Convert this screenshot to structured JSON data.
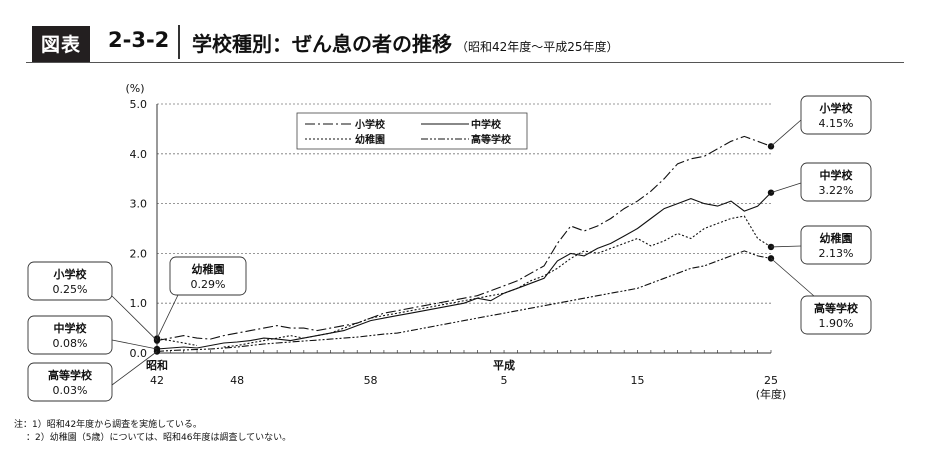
{
  "header": {
    "badge": "図表",
    "number": "2-3-2",
    "title": "学校種別：ぜん息の者の推移",
    "subtitle": "（昭和42年度～平成25年度）"
  },
  "notes": [
    "注：1）昭和42年度から調査を実施している。",
    "：2）幼稚園（5歳）については、昭和46年度は調査していない。"
  ],
  "chart_data": {
    "type": "line",
    "y_unit": "(%)",
    "x_unit": "(年度)",
    "ylim": [
      0,
      5
    ],
    "yticks": [
      "0.0",
      "1.0",
      "2.0",
      "3.0",
      "4.0",
      "5.0"
    ],
    "gridlines": "dotted horizontal",
    "x": [
      "昭和42",
      "昭和43",
      "昭和44",
      "昭和45",
      "昭和46",
      "昭和47",
      "昭和48",
      "昭和49",
      "昭和50",
      "昭和51",
      "昭和52",
      "昭和53",
      "昭和54",
      "昭和55",
      "昭和56",
      "昭和57",
      "昭和58",
      "昭和59",
      "昭和60",
      "昭和61",
      "昭和62",
      "昭和63",
      "平成元",
      "平成2",
      "平成3",
      "平成4",
      "平成5",
      "平成6",
      "平成7",
      "平成8",
      "平成9",
      "平成10",
      "平成11",
      "平成12",
      "平成13",
      "平成14",
      "平成15",
      "平成16",
      "平成17",
      "平成18",
      "平成19",
      "平成20",
      "平成21",
      "平成22",
      "平成23",
      "平成24",
      "平成25"
    ],
    "xtick_labels": [
      {
        "index": 0,
        "top": "昭和",
        "bottom": "42"
      },
      {
        "index": 6,
        "top": "",
        "bottom": "48"
      },
      {
        "index": 16,
        "top": "",
        "bottom": "58"
      },
      {
        "index": 26,
        "top": "平成",
        "bottom": "5"
      },
      {
        "index": 36,
        "top": "",
        "bottom": "15"
      },
      {
        "index": 46,
        "top": "",
        "bottom": "25"
      }
    ],
    "series": [
      {
        "name": "小学校",
        "dash": "10,3,2,3",
        "values": [
          0.25,
          0.3,
          0.35,
          0.3,
          0.28,
          0.35,
          0.4,
          0.45,
          0.5,
          0.55,
          0.5,
          0.5,
          0.45,
          0.5,
          0.55,
          0.6,
          0.7,
          0.8,
          0.85,
          0.9,
          0.95,
          1.0,
          1.05,
          1.1,
          1.15,
          1.25,
          1.35,
          1.45,
          1.6,
          1.75,
          2.2,
          2.55,
          2.45,
          2.55,
          2.7,
          2.9,
          3.05,
          3.25,
          3.5,
          3.8,
          3.9,
          3.95,
          4.1,
          4.25,
          4.35,
          4.25,
          4.15
        ]
      },
      {
        "name": "中学校",
        "dash": "",
        "values": [
          0.08,
          0.1,
          0.12,
          0.1,
          0.15,
          0.2,
          0.22,
          0.25,
          0.3,
          0.28,
          0.25,
          0.3,
          0.35,
          0.4,
          0.45,
          0.55,
          0.65,
          0.7,
          0.75,
          0.8,
          0.85,
          0.9,
          0.95,
          1.0,
          1.1,
          1.05,
          1.2,
          1.3,
          1.4,
          1.5,
          1.85,
          2.0,
          1.95,
          2.1,
          2.2,
          2.35,
          2.5,
          2.7,
          2.9,
          3.0,
          3.1,
          3.0,
          2.95,
          3.05,
          2.85,
          2.95,
          3.22
        ]
      },
      {
        "name": "幼稚園",
        "dash": "2,2",
        "values": [
          0.29,
          0.25,
          0.2,
          0.15,
          null,
          0.12,
          0.15,
          0.2,
          0.25,
          0.3,
          0.35,
          0.3,
          0.35,
          0.4,
          0.5,
          0.6,
          0.7,
          0.75,
          0.8,
          0.85,
          0.9,
          0.95,
          1.0,
          1.05,
          1.1,
          1.15,
          1.2,
          1.3,
          1.45,
          1.55,
          1.7,
          1.9,
          2.05,
          2.0,
          2.1,
          2.2,
          2.3,
          2.15,
          2.25,
          2.4,
          2.3,
          2.5,
          2.6,
          2.7,
          2.75,
          2.3,
          2.13
        ]
      },
      {
        "name": "高等学校",
        "dash": "7,2,2,2,2,2",
        "values": [
          0.03,
          0.05,
          0.06,
          0.07,
          0.08,
          0.1,
          0.12,
          0.15,
          0.18,
          0.2,
          0.22,
          0.24,
          0.26,
          0.28,
          0.3,
          0.32,
          0.35,
          0.38,
          0.4,
          0.45,
          0.5,
          0.55,
          0.6,
          0.65,
          0.7,
          0.75,
          0.8,
          0.85,
          0.9,
          0.95,
          1.0,
          1.05,
          1.1,
          1.15,
          1.2,
          1.25,
          1.3,
          1.4,
          1.5,
          1.6,
          1.7,
          1.75,
          1.85,
          1.95,
          2.05,
          1.95,
          1.9
        ]
      }
    ],
    "legend": [
      {
        "name": "小学校",
        "dash": "10,3,2,3"
      },
      {
        "name": "中学校",
        "dash": ""
      },
      {
        "name": "幼稚園",
        "dash": "2,2"
      },
      {
        "name": "高等学校",
        "dash": "7,2,2,2,2,2"
      }
    ],
    "start_callouts": [
      {
        "name": "小学校",
        "value": "0.25%"
      },
      {
        "name": "幼稚園",
        "value": "0.29%"
      },
      {
        "name": "中学校",
        "value": "0.08%"
      },
      {
        "name": "高等学校",
        "value": "0.03%"
      }
    ],
    "end_callouts": [
      {
        "name": "小学校",
        "value": "4.15%"
      },
      {
        "name": "中学校",
        "value": "3.22%"
      },
      {
        "name": "幼稚園",
        "value": "2.13%"
      },
      {
        "name": "高等学校",
        "value": "1.90%"
      }
    ]
  }
}
